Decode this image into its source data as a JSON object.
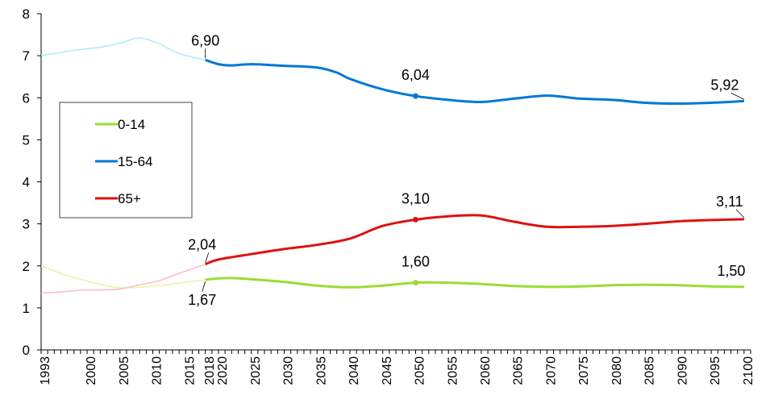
{
  "chart_data": {
    "type": "line",
    "title": "",
    "xlabel": "",
    "ylabel": "",
    "xlim": [
      1993,
      2101
    ],
    "ylim": [
      0,
      8
    ],
    "y_ticks": [
      "0",
      "1",
      "2",
      "3",
      "4",
      "5",
      "6",
      "7",
      "8"
    ],
    "x_tick_labels": [
      {
        "year": 1993,
        "label": "1993"
      },
      {
        "year": 2000,
        "label": "2000"
      },
      {
        "year": 2005,
        "label": "2005"
      },
      {
        "year": 2010,
        "label": "2010"
      },
      {
        "year": 2015,
        "label": "2015"
      },
      {
        "year": 2018,
        "label": "2018"
      },
      {
        "year": 2020,
        "label": "2020"
      },
      {
        "year": 2025,
        "label": "2025"
      },
      {
        "year": 2030,
        "label": "2030"
      },
      {
        "year": 2035,
        "label": "2035"
      },
      {
        "year": 2040,
        "label": "2040"
      },
      {
        "year": 2045,
        "label": "2045"
      },
      {
        "year": 2050,
        "label": "2050"
      },
      {
        "year": 2055,
        "label": "2055"
      },
      {
        "year": 2060,
        "label": "2060"
      },
      {
        "year": 2065,
        "label": "2065"
      },
      {
        "year": 2070,
        "label": "2070"
      },
      {
        "year": 2075,
        "label": "2075"
      },
      {
        "year": 2080,
        "label": "2080"
      },
      {
        "year": 2085,
        "label": "2085"
      },
      {
        "year": 2090,
        "label": "2090"
      },
      {
        "year": 2095,
        "label": "2095"
      },
      {
        "year": 2100,
        "label": "2100"
      }
    ],
    "legend_position": "left",
    "series": [
      {
        "name": "0-14",
        "color": "#99dd33",
        "historical_color": "#e8f5a8",
        "historical": {
          "x": [
            1993,
            1996,
            1999,
            2002,
            2005,
            2008,
            2011,
            2014,
            2018
          ],
          "y": [
            2.0,
            1.82,
            1.68,
            1.56,
            1.48,
            1.49,
            1.53,
            1.59,
            1.67
          ]
        },
        "projection": {
          "x": [
            2018,
            2020,
            2022,
            2025,
            2030,
            2035,
            2040,
            2045,
            2050,
            2055,
            2060,
            2065,
            2070,
            2075,
            2080,
            2085,
            2090,
            2095,
            2100
          ],
          "y": [
            1.67,
            1.7,
            1.71,
            1.68,
            1.62,
            1.53,
            1.49,
            1.53,
            1.6,
            1.6,
            1.57,
            1.52,
            1.5,
            1.51,
            1.54,
            1.55,
            1.54,
            1.51,
            1.5
          ]
        }
      },
      {
        "name": "15-64",
        "color": "#0078d7",
        "historical_color": "#b4ecf5",
        "historical": {
          "x": [
            1993,
            1996,
            1999,
            2002,
            2005,
            2008,
            2011,
            2014,
            2018
          ],
          "y": [
            7.0,
            7.08,
            7.15,
            7.2,
            7.3,
            7.42,
            7.28,
            7.05,
            6.9
          ]
        },
        "projection": {
          "x": [
            2018,
            2020,
            2022,
            2025,
            2030,
            2035,
            2038,
            2040,
            2045,
            2050,
            2055,
            2060,
            2065,
            2070,
            2075,
            2080,
            2085,
            2090,
            2095,
            2100
          ],
          "y": [
            6.9,
            6.8,
            6.77,
            6.8,
            6.76,
            6.72,
            6.6,
            6.45,
            6.2,
            6.04,
            5.95,
            5.9,
            5.98,
            6.05,
            5.98,
            5.95,
            5.88,
            5.86,
            5.88,
            5.92
          ]
        }
      },
      {
        "name": "65+",
        "color": "#dd1111",
        "historical_color": "#f8c0c8",
        "historical": {
          "x": [
            1993,
            1996,
            1999,
            2002,
            2005,
            2008,
            2011,
            2014,
            2018
          ],
          "y": [
            1.35,
            1.38,
            1.42,
            1.43,
            1.45,
            1.55,
            1.65,
            1.82,
            2.04
          ]
        },
        "projection": {
          "x": [
            2018,
            2020,
            2025,
            2030,
            2035,
            2040,
            2045,
            2050,
            2055,
            2060,
            2065,
            2070,
            2075,
            2080,
            2085,
            2090,
            2095,
            2100
          ],
          "y": [
            2.04,
            2.15,
            2.28,
            2.4,
            2.5,
            2.65,
            2.95,
            3.1,
            3.18,
            3.2,
            3.05,
            2.93,
            2.93,
            2.95,
            3.0,
            3.06,
            3.09,
            3.11
          ]
        }
      }
    ],
    "annotations": [
      {
        "text": "6,90",
        "x": 2018,
        "y": 6.9,
        "series": "15-64",
        "marker": false
      },
      {
        "text": "6,04",
        "x": 2050,
        "y": 6.04,
        "series": "15-64",
        "marker": true
      },
      {
        "text": "5,92",
        "x": 2100,
        "y": 5.92,
        "series": "15-64",
        "marker": false
      },
      {
        "text": "3,10",
        "x": 2050,
        "y": 3.1,
        "series": "65+",
        "marker": true
      },
      {
        "text": "3,11",
        "x": 2100,
        "y": 3.11,
        "series": "65+",
        "marker": false
      },
      {
        "text": "2,04",
        "x": 2018,
        "y": 2.04,
        "series": "65+",
        "marker": false
      },
      {
        "text": "1,60",
        "x": 2050,
        "y": 1.6,
        "series": "0-14",
        "marker": true
      },
      {
        "text": "1,50",
        "x": 2100,
        "y": 1.5,
        "series": "0-14",
        "marker": false
      },
      {
        "text": "1,67",
        "x": 2018,
        "y": 1.67,
        "series": "0-14",
        "marker": false
      }
    ]
  }
}
